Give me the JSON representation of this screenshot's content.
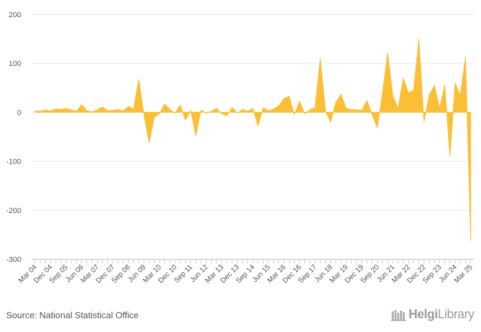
{
  "chart_data": {
    "type": "area",
    "title": "",
    "xlabel": "",
    "ylabel": "",
    "ylim": [
      -300,
      200
    ],
    "yticks": [
      200,
      100,
      0,
      -100,
      -200,
      -300
    ],
    "grid": true,
    "fill_color": "#FBBF36",
    "start": {
      "year": 2004,
      "quarter": 1
    },
    "x_tick_labels": [
      "Mar 04",
      "Dec 04",
      "Sep 05",
      "Jun 06",
      "Mar 07",
      "Dec 07",
      "Sep 08",
      "Jun 09",
      "Mar 10",
      "Dec 10",
      "Sep 11",
      "Jun 12",
      "Mar 13",
      "Dec 13",
      "Sep 14",
      "Jun 15",
      "Mar 16",
      "Dec 16",
      "Sep 17",
      "Jun 18",
      "Mar 19",
      "Dec 19",
      "Sep 20",
      "Jun 21",
      "Mar 22",
      "Dec 22",
      "Sep 23",
      "Jun 24",
      "Mar 25"
    ],
    "values": [
      3,
      2,
      5,
      3,
      7,
      6,
      8,
      5,
      2,
      16,
      3,
      1,
      5,
      11,
      3,
      4,
      6,
      3,
      12,
      7,
      68,
      -5,
      -62,
      -10,
      -3,
      17,
      6,
      -2,
      15,
      -16,
      4,
      -48,
      5,
      -2,
      2,
      8,
      -3,
      -7,
      10,
      -2,
      6,
      2,
      8,
      -28,
      10,
      3,
      7,
      13,
      28,
      33,
      -5,
      23,
      -3,
      5,
      10,
      110,
      2,
      -20,
      20,
      37,
      8,
      6,
      5,
      4,
      24,
      -5,
      -32,
      40,
      121,
      33,
      8,
      70,
      40,
      45,
      150,
      -20,
      35,
      55,
      8,
      56,
      -90,
      60,
      34,
      113,
      -262
    ],
    "source": "Source: National Statistical Office",
    "logo_text_1": "Helgi",
    "logo_text_2": "Library"
  }
}
